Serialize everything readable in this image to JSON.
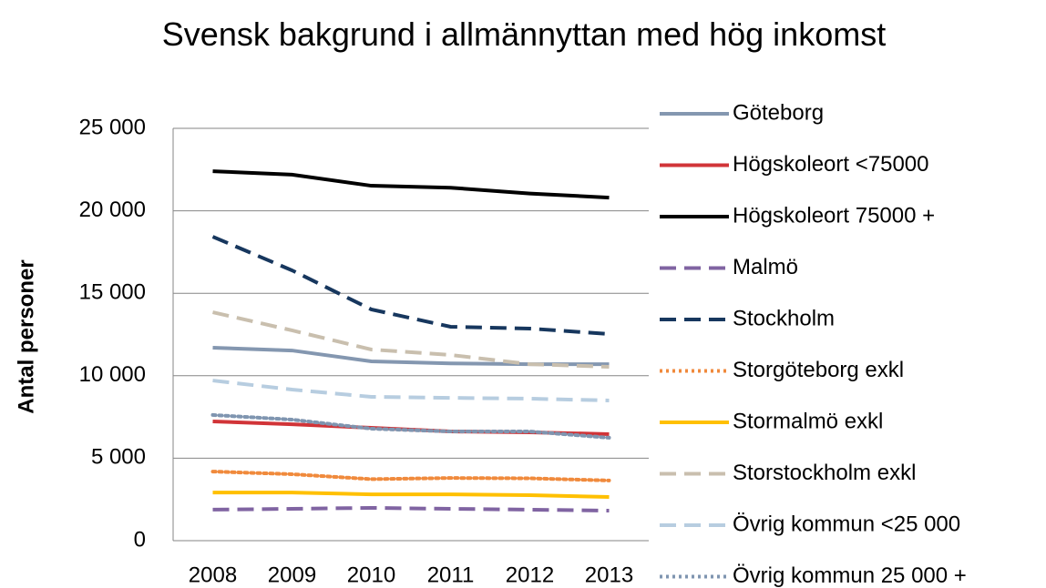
{
  "chart_data": {
    "type": "line",
    "title": "Svensk bakgrund i allmännyttan med hög inkomst",
    "y_label": "Antal personer",
    "categories": [
      "2008",
      "2009",
      "2010",
      "2011",
      "2012",
      "2013"
    ],
    "ylim": [
      0,
      25000
    ],
    "yticks": [
      0,
      {
        "value": 5000,
        "label": "5 000"
      },
      {
        "value": 10000,
        "label": "10 000"
      },
      {
        "value": 15000,
        "label": "15 000"
      },
      {
        "value": 20000,
        "label": "20 000"
      },
      {
        "value": 25000,
        "label": "25 000"
      }
    ],
    "grid": true,
    "legend": "right",
    "series": [
      {
        "name": "Göteborg",
        "color": "#8497b0",
        "dash": "solid",
        "values": [
          11700,
          11530,
          10870,
          10750,
          10700,
          10700
        ]
      },
      {
        "name": "Högskoleort <75000",
        "color": "#d13438",
        "dash": "solid",
        "values": [
          7230,
          7060,
          6840,
          6620,
          6570,
          6460
        ]
      },
      {
        "name": "Högskoleort 75000 +",
        "color": "#000000",
        "dash": "solid",
        "values": [
          22400,
          22190,
          21520,
          21400,
          21050,
          20800
        ]
      },
      {
        "name": "Malmö",
        "color": "#8064a2",
        "dash": "dashed",
        "values": [
          1880,
          1930,
          1990,
          1930,
          1880,
          1820
        ]
      },
      {
        "name": "Stockholm",
        "color": "#17375e",
        "dash": "dashed",
        "values": [
          18430,
          16390,
          14020,
          12970,
          12860,
          12530
        ]
      },
      {
        "name": "Storgöteborg exkl",
        "color": "#f08a3c",
        "dash": "dotted",
        "values": [
          4190,
          4030,
          3730,
          3800,
          3780,
          3650
        ]
      },
      {
        "name": "Stormalmö exkl",
        "color": "#ffc000",
        "dash": "solid",
        "values": [
          2920,
          2920,
          2810,
          2810,
          2760,
          2650
        ]
      },
      {
        "name": "Storstockholm exkl",
        "color": "#c9bfae",
        "dash": "dashed",
        "values": [
          13850,
          12750,
          11590,
          11260,
          10700,
          10540
        ]
      },
      {
        "name": "Övrig kommun <25 000",
        "color": "#b7cde0",
        "dash": "dashed",
        "values": [
          9710,
          9160,
          8720,
          8660,
          8610,
          8500
        ]
      },
      {
        "name": "Övrig kommun 25 000 +",
        "color": "#7f95b0",
        "dash": "dotted",
        "values": [
          7620,
          7340,
          6790,
          6620,
          6620,
          6240
        ]
      }
    ]
  }
}
